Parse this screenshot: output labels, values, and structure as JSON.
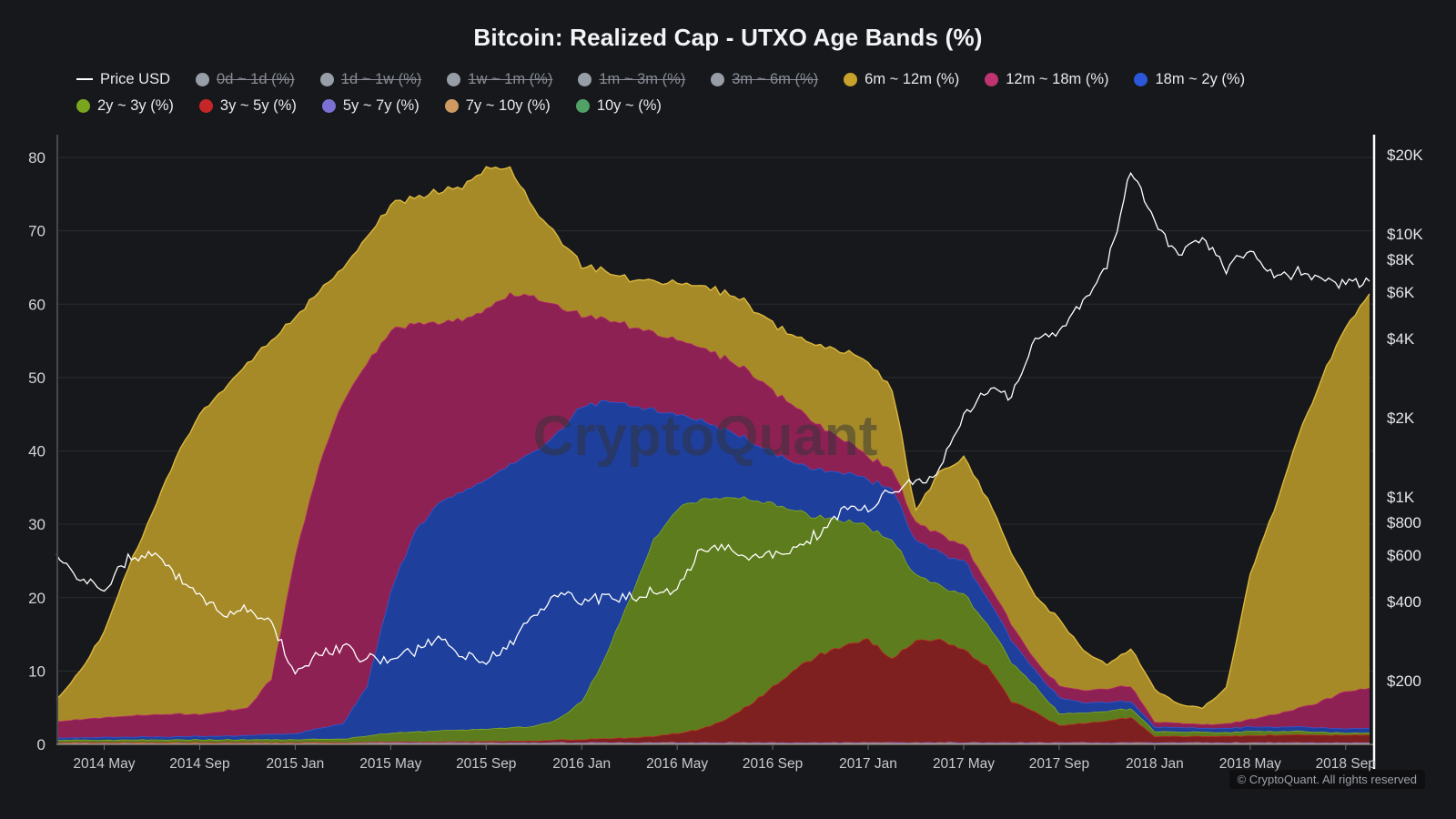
{
  "title": "Bitcoin: Realized Cap - UTXO Age Bands (%)",
  "footer": "© CryptoQuant. All rights reserved",
  "watermark": "CryptoQuant",
  "colors": {
    "background": "#17181b",
    "grid": "#2b2c31",
    "left_axis_line": "#46484e",
    "right_axis_line": "#ffffff",
    "bottom_axis_line": "#8f8d88",
    "tick_mark": "#6b6e75",
    "axis_text_left": "#d2d4d9",
    "axis_text_right": "#e4e6ea",
    "axis_text_x": "#c7c9ce",
    "title_text": "#f3f4f6",
    "price_line": "#ffffff",
    "watermark_fill": "#323338"
  },
  "legend": {
    "rows": [
      [
        {
          "label": "Price USD",
          "type": "line",
          "color": "#ffffff",
          "state": "active"
        },
        {
          "label": "0d ~ 1d (%)",
          "type": "dot",
          "color": "#989ea8",
          "state": "disabled"
        },
        {
          "label": "1d ~ 1w (%)",
          "type": "dot",
          "color": "#989ea8",
          "state": "disabled"
        },
        {
          "label": "1w ~ 1m (%)",
          "type": "dot",
          "color": "#989ea8",
          "state": "disabled"
        },
        {
          "label": "1m ~ 3m (%)",
          "type": "dot",
          "color": "#989ea8",
          "state": "disabled"
        },
        {
          "label": "3m ~ 6m (%)",
          "type": "dot",
          "color": "#989ea8",
          "state": "disabled"
        },
        {
          "label": "6m ~ 12m (%)",
          "type": "dot",
          "color": "#c9a22b",
          "state": "active"
        },
        {
          "label": "12m ~ 18m (%)",
          "type": "dot",
          "color": "#bf3470",
          "state": "active"
        },
        {
          "label": "18m ~ 2y (%)",
          "type": "dot",
          "color": "#2b57d8",
          "state": "active"
        }
      ],
      [
        {
          "label": "2y ~ 3y (%)",
          "type": "dot",
          "color": "#79a51f",
          "state": "active"
        },
        {
          "label": "3y ~ 5y (%)",
          "type": "dot",
          "color": "#c52727",
          "state": "active"
        },
        {
          "label": "5y ~ 7y (%)",
          "type": "dot",
          "color": "#7b71d4",
          "state": "active"
        },
        {
          "label": "7y ~ 10y (%)",
          "type": "dot",
          "color": "#cf9a61",
          "state": "active"
        },
        {
          "label": "10y ~ (%)",
          "type": "dot",
          "color": "#51a167",
          "state": "active"
        }
      ]
    ]
  },
  "chart_data": {
    "type": "area",
    "stacked": true,
    "n": 56,
    "x_start": "2014-03",
    "x_end": "2018-10",
    "x_step": "month",
    "left_axis": {
      "unit": "%",
      "ticks": [
        0,
        10,
        20,
        30,
        40,
        50,
        60,
        70,
        80
      ],
      "range": [
        0,
        83
      ],
      "grid": true
    },
    "right_axis": {
      "scale": "log",
      "unit": "USD",
      "ticks": [
        {
          "value": 20000,
          "label": "$20K"
        },
        {
          "value": 10000,
          "label": "$10K"
        },
        {
          "value": 8000,
          "label": "$8K"
        },
        {
          "value": 6000,
          "label": "$6K"
        },
        {
          "value": 4000,
          "label": "$4K"
        },
        {
          "value": 2000,
          "label": "$2K"
        },
        {
          "value": 1000,
          "label": "$1K"
        },
        {
          "value": 800,
          "label": "$800"
        },
        {
          "value": 600,
          "label": "$600"
        },
        {
          "value": 400,
          "label": "$400"
        },
        {
          "value": 200,
          "label": "$200"
        }
      ]
    },
    "x_ticks": [
      {
        "label": "2014 May",
        "m": 2
      },
      {
        "label": "2014 Sep",
        "m": 6
      },
      {
        "label": "2015 Jan",
        "m": 10
      },
      {
        "label": "2015 May",
        "m": 14
      },
      {
        "label": "2015 Sep",
        "m": 18
      },
      {
        "label": "2016 Jan",
        "m": 22
      },
      {
        "label": "2016 May",
        "m": 26
      },
      {
        "label": "2016 Sep",
        "m": 30
      },
      {
        "label": "2017 Jan",
        "m": 34
      },
      {
        "label": "2017 May",
        "m": 38
      },
      {
        "label": "2017 Sep",
        "m": 42
      },
      {
        "label": "2018 Jan",
        "m": 46
      },
      {
        "label": "2018 May",
        "m": 50
      },
      {
        "label": "2018 Sep",
        "m": 54
      }
    ],
    "series": [
      {
        "name": "10y ~ (%)",
        "fill": "#3f8b55",
        "edge": "#58b06f",
        "values_const": 0.08
      },
      {
        "name": "7y ~ 10y (%)",
        "fill": "#b57f47",
        "edge": "#d19a60",
        "values_const": 0.08
      },
      {
        "name": "5y ~ 7y (%)",
        "fill": "#655bc2",
        "edge": "#8379e0",
        "values_const": 0.1
      },
      {
        "name": "3y ~ 5y (%)",
        "fill": "#7e2020",
        "edge": "#c22d24",
        "values": [
          0,
          0,
          0,
          0,
          0,
          0,
          0,
          0,
          0,
          0,
          0,
          0,
          0,
          0.05,
          0.1,
          0.1,
          0.1,
          0.15,
          0.15,
          0.2,
          0.25,
          0.35,
          0.45,
          0.55,
          0.65,
          0.85,
          1.25,
          1.85,
          3.1,
          5.1,
          7.6,
          10.1,
          12.1,
          13.1,
          14.1,
          11.4,
          13.9,
          14.0,
          12.6,
          10.5,
          5.6,
          4.2,
          2.4,
          2.6,
          3.0,
          3.4,
          0.85,
          0.85,
          0.85,
          0.9,
          0.95,
          1.0,
          1.05,
          1.05,
          1.05,
          1.05
        ]
      },
      {
        "name": "2y ~ 3y (%)",
        "fill": "#5d7c1d",
        "edge": "#8ab325",
        "values": [
          0.35,
          0.35,
          0.35,
          0.35,
          0.4,
          0.4,
          0.4,
          0.4,
          0.4,
          0.4,
          0.4,
          0.45,
          0.5,
          0.85,
          1.2,
          1.4,
          1.55,
          1.6,
          1.7,
          1.85,
          2.0,
          2.8,
          5.2,
          11.1,
          19.0,
          26.8,
          30.7,
          31.3,
          30.4,
          28.0,
          25.0,
          21.5,
          18.5,
          17.0,
          15.4,
          16.1,
          9.0,
          7.3,
          7.6,
          5.8,
          5.3,
          3.5,
          1.6,
          1.4,
          1.3,
          1.2,
          0.7,
          0.6,
          0.6,
          0.5,
          0.6,
          0.5,
          0.5,
          0.4,
          0.3,
          0.3
        ]
      },
      {
        "name": "18m ~ 2y (%)",
        "fill": "#1e3f9c",
        "edge": "#2e5ddd",
        "values": [
          0.3,
          0.3,
          0.4,
          0.4,
          0.4,
          0.4,
          0.5,
          0.5,
          0.6,
          0.7,
          0.8,
          1.45,
          2.1,
          6.8,
          19.4,
          27.2,
          31.0,
          32.4,
          33.9,
          35.8,
          37.5,
          39.0,
          40.3,
          34.8,
          26.5,
          17.8,
          12.7,
          10.8,
          9.3,
          8.0,
          7.0,
          6.5,
          6.5,
          6.5,
          6.5,
          7.0,
          4.6,
          4.5,
          4.6,
          3.5,
          3.0,
          2.1,
          2.2,
          1.4,
          1.2,
          1.0,
          0.6,
          0.6,
          0.5,
          0.6,
          0.6,
          0.6,
          0.6,
          0.6,
          0.6,
          0.6
        ]
      },
      {
        "name": "12m ~ 18m (%)",
        "fill": "#8e2154",
        "edge": "#c12b6d",
        "values": [
          2.2,
          2.5,
          2.7,
          2.9,
          3.0,
          3.1,
          3.0,
          3.4,
          3.7,
          7.6,
          24.3,
          35.8,
          44.0,
          44.0,
          35.5,
          28.5,
          24.5,
          23.5,
          23.2,
          23.3,
          21.1,
          17.5,
          12.4,
          11.2,
          10.7,
          10.4,
          10.3,
          9.9,
          9.9,
          9.5,
          8.5,
          7.5,
          6.0,
          4.5,
          3.1,
          2.7,
          2.5,
          2.5,
          2.2,
          2.1,
          2.2,
          1.4,
          1.6,
          1.7,
          1.9,
          2.1,
          0.7,
          0.6,
          0.5,
          0.6,
          1.0,
          1.7,
          2.5,
          3.6,
          5.1,
          5.5
        ]
      },
      {
        "name": "6m ~ 12m (%)",
        "fill": "#a68a27",
        "edge": "#dcb83f",
        "values": [
          2.9,
          6.6,
          11.6,
          20.1,
          27.3,
          34.8,
          40.8,
          43.9,
          46.9,
          46.0,
          32.3,
          23.5,
          18.0,
          17.0,
          17.1,
          17.0,
          18.0,
          18.0,
          19.2,
          17.3,
          11.8,
          9.5,
          6.8,
          6.5,
          6.3,
          7.0,
          7.7,
          8.3,
          8.9,
          9.0,
          9.0,
          9.5,
          11.0,
          12.0,
          13.0,
          10.9,
          1.5,
          8.6,
          11.8,
          11.3,
          9.7,
          8.7,
          8.9,
          5.5,
          3.2,
          5.0,
          4.4,
          2.5,
          2.2,
          4.8,
          19.8,
          27.8,
          36.9,
          44.0,
          49.7,
          53.7
        ]
      }
    ],
    "price_series": {
      "name": "Price USD",
      "type": "line",
      "color": "#ffffff",
      "values": [
        600,
        480,
        450,
        590,
        620,
        510,
        430,
        350,
        370,
        330,
        215,
        250,
        270,
        240,
        240,
        255,
        290,
        250,
        235,
        280,
        350,
        430,
        400,
        420,
        415,
        440,
        455,
        640,
        660,
        580,
        610,
        640,
        730,
        900,
        910,
        1050,
        1150,
        1250,
        2000,
        2600,
        2400,
        4000,
        4200,
        5600,
        7500,
        17500,
        11000,
        8500,
        9500,
        7500,
        8700,
        6800,
        7200,
        6800,
        6500,
        6600
      ]
    }
  }
}
